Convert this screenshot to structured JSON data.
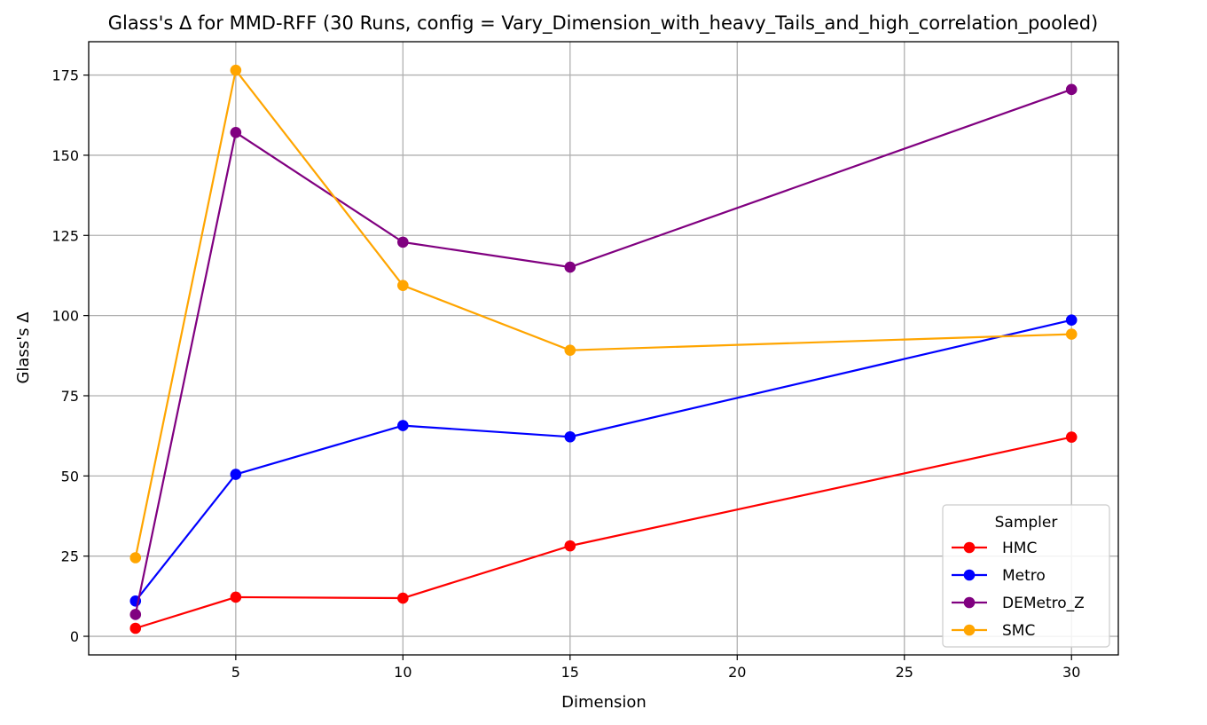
{
  "chart_data": {
    "type": "line",
    "title": "Glass's Δ for MMD-RFF (30 Runs, config = Vary_Dimension_with_heavy_Tails_and_high_correlation_pooled)",
    "xlabel": "Dimension",
    "ylabel": "Glass's Δ",
    "x": [
      2,
      5,
      10,
      15,
      30
    ],
    "xlim": [
      0.6,
      31.4
    ],
    "ylim": [
      -5.8,
      185.4
    ],
    "xticks": [
      5,
      10,
      15,
      20,
      25,
      30
    ],
    "yticks": [
      0,
      25,
      50,
      75,
      100,
      125,
      150,
      175
    ],
    "grid": true,
    "legend": {
      "title": "Sampler",
      "placement": "lower-right"
    },
    "series": [
      {
        "name": "HMC",
        "color": "#ff0000",
        "values": [
          2.5,
          12.2,
          11.9,
          28.2,
          62.1
        ]
      },
      {
        "name": "Metro",
        "color": "#0000ff",
        "values": [
          11.0,
          50.5,
          65.7,
          62.2,
          98.6
        ]
      },
      {
        "name": "DEMetro_Z",
        "color": "#800080",
        "values": [
          6.8,
          157.1,
          122.9,
          115.1,
          170.5
        ]
      },
      {
        "name": "SMC",
        "color": "#ffa500",
        "values": [
          24.5,
          176.5,
          109.4,
          89.2,
          94.2
        ]
      }
    ]
  }
}
